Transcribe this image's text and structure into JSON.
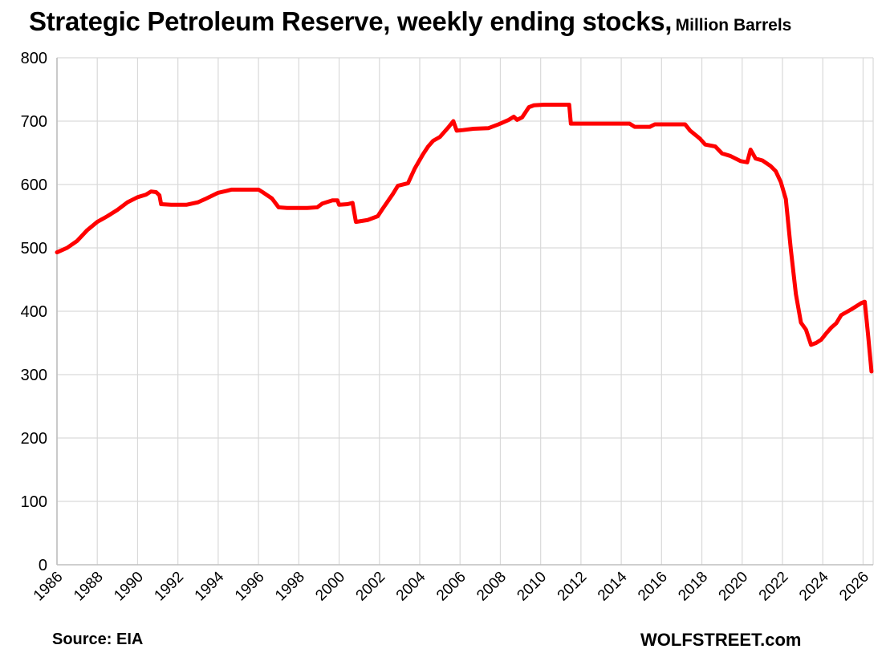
{
  "chart_data": {
    "type": "line",
    "title": "Strategic Petroleum Reserve, weekly ending stocks,",
    "subtitle": "Million Barrels",
    "xlabel": "",
    "ylabel": "",
    "ylim": [
      0,
      800
    ],
    "xlim": [
      "1986-01-01",
      "2026-07-01"
    ],
    "grid": true,
    "legend": "none",
    "y_ticks": [
      "0",
      "100",
      "200",
      "300",
      "400",
      "500",
      "600",
      "700",
      "800"
    ],
    "x_ticks": [
      "1986",
      "1988",
      "1990",
      "1992",
      "1994",
      "1996",
      "1998",
      "2000",
      "2002",
      "2004",
      "2006",
      "2008",
      "2010",
      "2012",
      "2014",
      "2016",
      "2018",
      "2020",
      "2022",
      "2024",
      "2026"
    ],
    "line_color": "#ff0000",
    "grid_color": "#d9d9d9",
    "series": [
      {
        "points": [
          [
            "1986-01",
            493
          ],
          [
            "1986-07",
            500
          ],
          [
            "1987-01",
            511
          ],
          [
            "1987-07",
            528
          ],
          [
            "1988-01",
            541
          ],
          [
            "1988-07",
            550
          ],
          [
            "1989-01",
            560
          ],
          [
            "1989-07",
            572
          ],
          [
            "1990-01",
            580
          ],
          [
            "1990-06",
            584
          ],
          [
            "1990-09",
            589
          ],
          [
            "1990-12",
            588
          ],
          [
            "1991-02",
            583
          ],
          [
            "1991-03",
            569
          ],
          [
            "1991-09",
            568
          ],
          [
            "1992-06",
            568
          ],
          [
            "1993-01",
            572
          ],
          [
            "1993-06",
            578
          ],
          [
            "1994-01",
            587
          ],
          [
            "1994-06",
            590
          ],
          [
            "1994-09",
            592
          ],
          [
            "1995-06",
            592
          ],
          [
            "1996-01",
            592
          ],
          [
            "1996-04",
            587
          ],
          [
            "1996-09",
            578
          ],
          [
            "1997-01",
            564
          ],
          [
            "1997-06",
            563
          ],
          [
            "1998-06",
            563
          ],
          [
            "1998-12",
            564
          ],
          [
            "1999-03",
            570
          ],
          [
            "1999-09",
            575
          ],
          [
            "1999-12",
            575
          ],
          [
            "2000-01",
            568
          ],
          [
            "2000-06",
            569
          ],
          [
            "2000-09",
            571
          ],
          [
            "2000-11",
            541
          ],
          [
            "2001-06",
            544
          ],
          [
            "2001-12",
            550
          ],
          [
            "2002-03",
            562
          ],
          [
            "2002-09",
            585
          ],
          [
            "2002-12",
            598
          ],
          [
            "2003-06",
            602
          ],
          [
            "2003-10",
            625
          ],
          [
            "2004-03",
            648
          ],
          [
            "2004-06",
            660
          ],
          [
            "2004-09",
            669
          ],
          [
            "2005-01",
            675
          ],
          [
            "2005-06",
            690
          ],
          [
            "2005-09",
            700
          ],
          [
            "2005-11",
            685
          ],
          [
            "2006-03",
            686
          ],
          [
            "2006-09",
            688
          ],
          [
            "2007-06",
            689
          ],
          [
            "2007-12",
            695
          ],
          [
            "2008-06",
            702
          ],
          [
            "2008-09",
            707
          ],
          [
            "2008-11",
            702
          ],
          [
            "2009-02",
            706
          ],
          [
            "2009-06",
            722
          ],
          [
            "2009-09",
            725
          ],
          [
            "2010-03",
            726
          ],
          [
            "2011-06",
            726
          ],
          [
            "2011-07",
            696
          ],
          [
            "2012-06",
            696
          ],
          [
            "2013-06",
            696
          ],
          [
            "2014-06",
            696
          ],
          [
            "2014-09",
            691
          ],
          [
            "2015-06",
            691
          ],
          [
            "2015-09",
            695
          ],
          [
            "2016-06",
            695
          ],
          [
            "2017-03",
            695
          ],
          [
            "2017-06",
            685
          ],
          [
            "2017-12",
            672
          ],
          [
            "2018-03",
            663
          ],
          [
            "2018-09",
            660
          ],
          [
            "2019-01",
            649
          ],
          [
            "2019-06",
            645
          ],
          [
            "2019-12",
            637
          ],
          [
            "2020-04",
            635
          ],
          [
            "2020-06",
            655
          ],
          [
            "2020-09",
            641
          ],
          [
            "2021-01",
            638
          ],
          [
            "2021-06",
            629
          ],
          [
            "2021-09",
            621
          ],
          [
            "2021-12",
            604
          ],
          [
            "2022-03",
            577
          ],
          [
            "2022-06",
            497
          ],
          [
            "2022-09",
            427
          ],
          [
            "2022-12",
            382
          ],
          [
            "2023-03",
            371
          ],
          [
            "2023-06",
            347
          ],
          [
            "2023-09",
            350
          ],
          [
            "2023-12",
            355
          ],
          [
            "2024-03",
            365
          ],
          [
            "2024-06",
            374
          ],
          [
            "2024-09",
            381
          ],
          [
            "2024-12",
            394
          ],
          [
            "2025-06",
            403
          ],
          [
            "2025-12",
            413
          ],
          [
            "2026-02",
            415
          ],
          [
            "2026-04",
            362
          ],
          [
            "2026-06",
            305
          ]
        ]
      }
    ]
  },
  "footer": {
    "source": "Source: EIA",
    "brand": "WOLFSTREET.com"
  }
}
